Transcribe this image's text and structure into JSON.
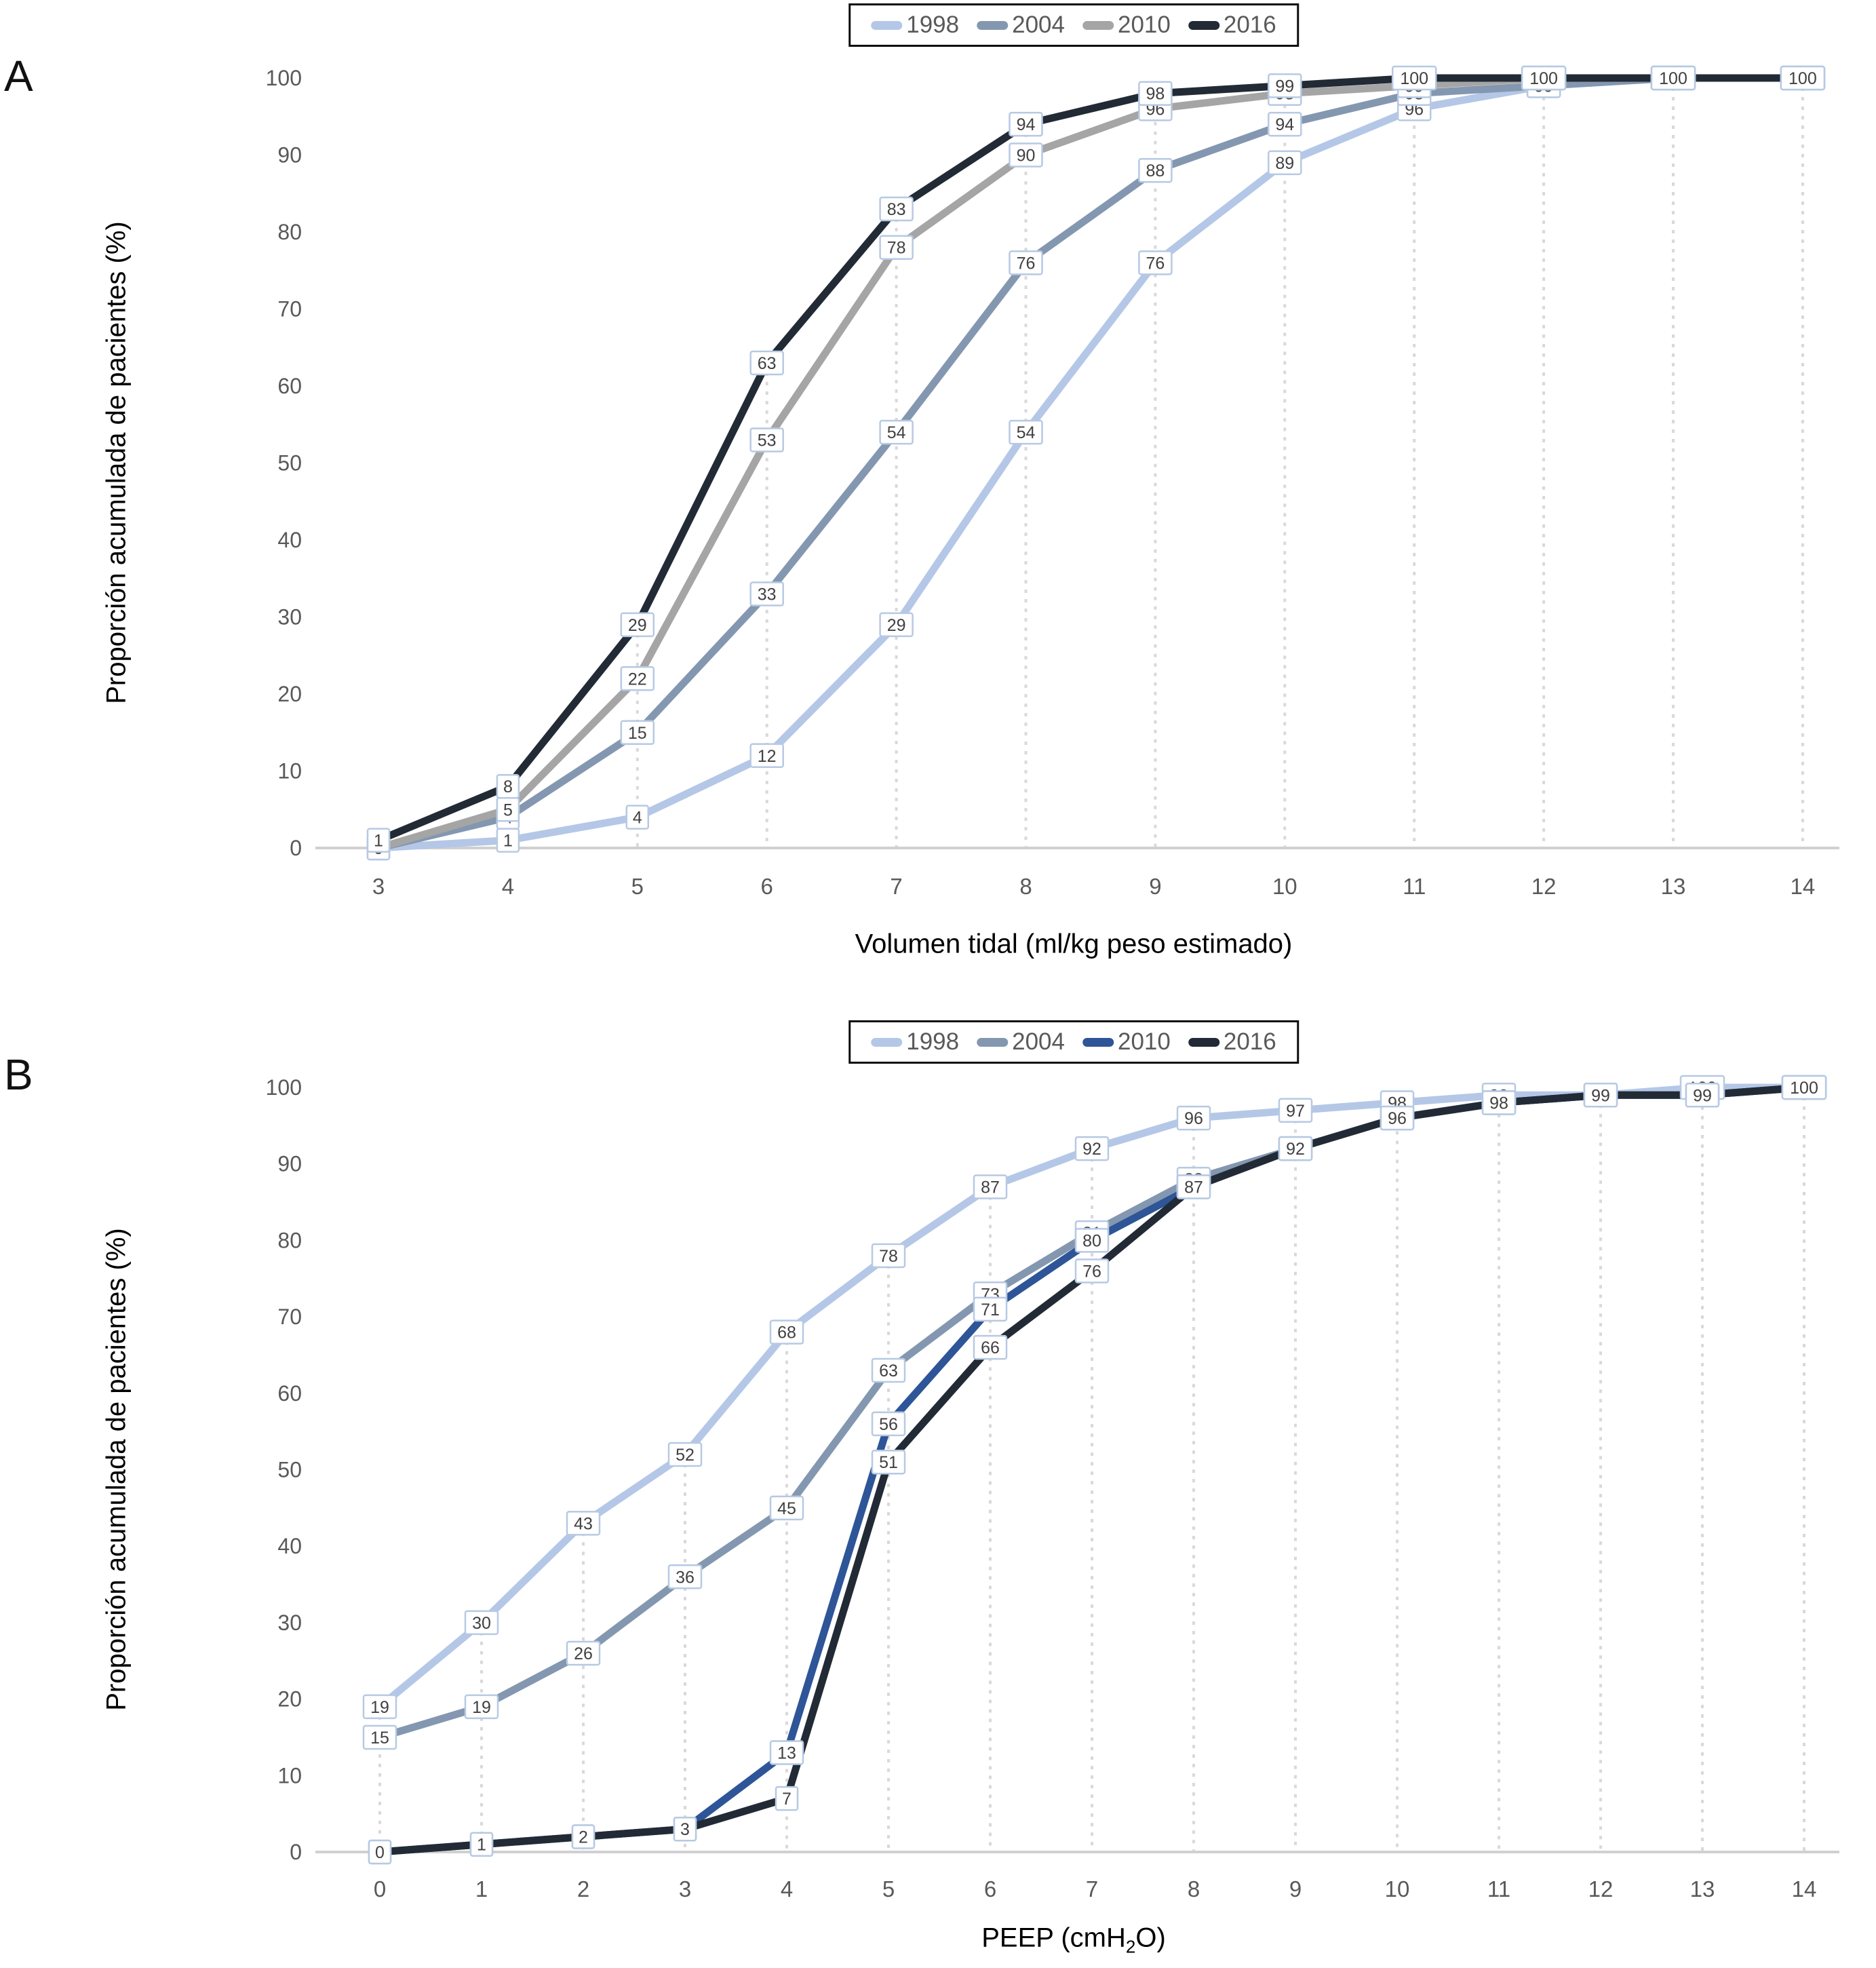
{
  "accent_colors": {
    "label_box_border": "#b7c9e3",
    "label_text": "#404040",
    "tick_text": "#595959",
    "gridline": "#d9d9d9",
    "axis_line": "#d0d0d0"
  },
  "panels": [
    {
      "panel_letter": "A",
      "chart_data": {
        "type": "line",
        "title": "",
        "xlabel": "Volumen tidal (ml/kg peso estimado)",
        "ylabel": "Proporción acumulada de pacientes (%)",
        "x": [
          3,
          4,
          5,
          6,
          7,
          8,
          9,
          10,
          11,
          12,
          13,
          14
        ],
        "xticks": [
          "3",
          "4",
          "5",
          "6",
          "7",
          "8",
          "9",
          "10",
          "11",
          "12",
          "13",
          "14"
        ],
        "yticks": [
          0,
          10,
          20,
          30,
          40,
          50,
          60,
          70,
          80,
          90,
          100
        ],
        "ylim": [
          0,
          100
        ],
        "grid": "vertical-dotted",
        "legend_position": "top",
        "data_labels": true,
        "series": [
          {
            "name": "1998",
            "color": "#b4c7e7",
            "values": [
              0,
              1,
              4,
              12,
              29,
              54,
              76,
              89,
              96,
              99,
              100,
              100
            ]
          },
          {
            "name": "2004",
            "color": "#8497b0",
            "values": [
              0,
              4,
              15,
              33,
              54,
              76,
              88,
              94,
              98,
              99,
              100,
              100
            ]
          },
          {
            "name": "2010",
            "color": "#a5a5a5",
            "values": [
              0,
              5,
              22,
              53,
              78,
              90,
              96,
              98,
              99,
              100,
              100,
              100
            ]
          },
          {
            "name": "2016",
            "color": "#222a35",
            "values": [
              1,
              8,
              29,
              63,
              83,
              94,
              98,
              99,
              100,
              100,
              100,
              100
            ]
          }
        ]
      }
    },
    {
      "panel_letter": "B",
      "chart_data": {
        "type": "line",
        "title": "",
        "xlabel": "PEEP (cmH2O)",
        "xlabel_prefix": "PEEP (cmH",
        "xlabel_sub": "2",
        "xlabel_suffix": "O)",
        "ylabel": "Proporción acumulada de pacientes (%)",
        "x": [
          0,
          1,
          2,
          3,
          4,
          5,
          6,
          7,
          8,
          9,
          10,
          11,
          12,
          13,
          14
        ],
        "xticks": [
          "0",
          "1",
          "2",
          "3",
          "4",
          "5",
          "6",
          "7",
          "8",
          "9",
          "10",
          "11",
          "12",
          "13",
          "14"
        ],
        "yticks": [
          0,
          10,
          20,
          30,
          40,
          50,
          60,
          70,
          80,
          90,
          100
        ],
        "ylim": [
          0,
          100
        ],
        "grid": "vertical-dotted",
        "legend_position": "top",
        "data_labels": true,
        "series": [
          {
            "name": "1998",
            "color": "#b4c7e7",
            "values": [
              19,
              30,
              43,
              52,
              68,
              78,
              87,
              92,
              96,
              97,
              98,
              99,
              99,
              100,
              100
            ]
          },
          {
            "name": "2004",
            "color": "#8497b0",
            "values": [
              15,
              19,
              26,
              36,
              45,
              63,
              73,
              81,
              88,
              92,
              96,
              98,
              99,
              99,
              100
            ]
          },
          {
            "name": "2010",
            "color": "#2e5597",
            "values": [
              0,
              1,
              2,
              3,
              13,
              56,
              71,
              80,
              87,
              92,
              96,
              98,
              99,
              99,
              100
            ]
          },
          {
            "name": "2016",
            "color": "#222a35",
            "values": [
              0,
              1,
              2,
              3,
              7,
              51,
              66,
              76,
              87,
              92,
              96,
              98,
              99,
              99,
              100
            ]
          }
        ]
      }
    }
  ]
}
